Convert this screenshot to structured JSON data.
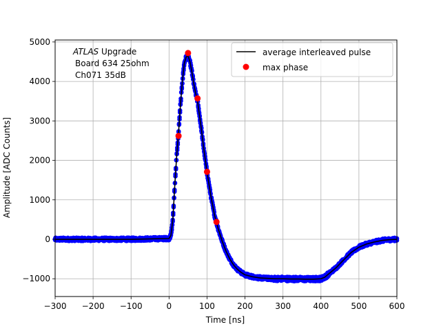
{
  "chart_data": {
    "type": "scatter",
    "xlabel": "Time [ns]",
    "ylabel": "Amplitude [ADC Counts]",
    "xlim": [
      -300,
      600
    ],
    "ylim": [
      -1450,
      5050
    ],
    "xticks": [
      -300,
      -200,
      -100,
      0,
      100,
      200,
      300,
      400,
      500,
      600
    ],
    "yticks": [
      -1000,
      0,
      1000,
      2000,
      3000,
      4000,
      5000
    ],
    "xtick_labels": [
      "−300",
      "−200",
      "−100",
      "0",
      "100",
      "200",
      "300",
      "400",
      "500",
      "600"
    ],
    "ytick_labels": [
      "−1000",
      "0",
      "1000",
      "2000",
      "3000",
      "4000",
      "5000"
    ],
    "grid": true,
    "legend_position": "top-right",
    "annotation": {
      "line1_italic": "ATLAS",
      "line1_rest": " Upgrade",
      "line2": "Board 634 25ohm",
      "line3": "Ch071 35dB"
    },
    "series": [
      {
        "name": "average interleaved pulse",
        "kind": "line",
        "color": "#000000",
        "x": [
          -300,
          -100,
          0,
          5,
          10,
          15,
          20,
          25,
          30,
          35,
          40,
          45,
          50,
          55,
          60,
          65,
          70,
          75,
          80,
          85,
          90,
          95,
          100,
          110,
          120,
          130,
          140,
          150,
          160,
          170,
          180,
          190,
          200,
          220,
          240,
          260,
          280,
          300,
          320,
          340,
          360,
          380,
          400,
          410,
          420,
          440,
          460,
          480,
          500,
          520,
          540,
          560,
          580,
          600
        ],
        "y": [
          0,
          0,
          20,
          100,
          500,
          1350,
          2100,
          2700,
          3400,
          4000,
          4450,
          4620,
          4650,
          4500,
          4250,
          3950,
          3700,
          3500,
          3150,
          2800,
          2400,
          2050,
          1700,
          1100,
          600,
          250,
          -50,
          -300,
          -500,
          -650,
          -760,
          -840,
          -900,
          -950,
          -980,
          -990,
          -1000,
          -1000,
          -1005,
          -1005,
          -1010,
          -1010,
          -1000,
          -960,
          -880,
          -720,
          -520,
          -330,
          -200,
          -120,
          -70,
          -30,
          -10,
          0
        ]
      },
      {
        "name": "",
        "kind": "scatter-band",
        "color": "#0000ff"
      },
      {
        "name": "max phase",
        "kind": "scatter",
        "color": "#ff0000",
        "x": [
          25,
          50,
          75,
          100,
          125
        ],
        "y": [
          2620,
          4720,
          3570,
          1710,
          440
        ]
      }
    ]
  }
}
